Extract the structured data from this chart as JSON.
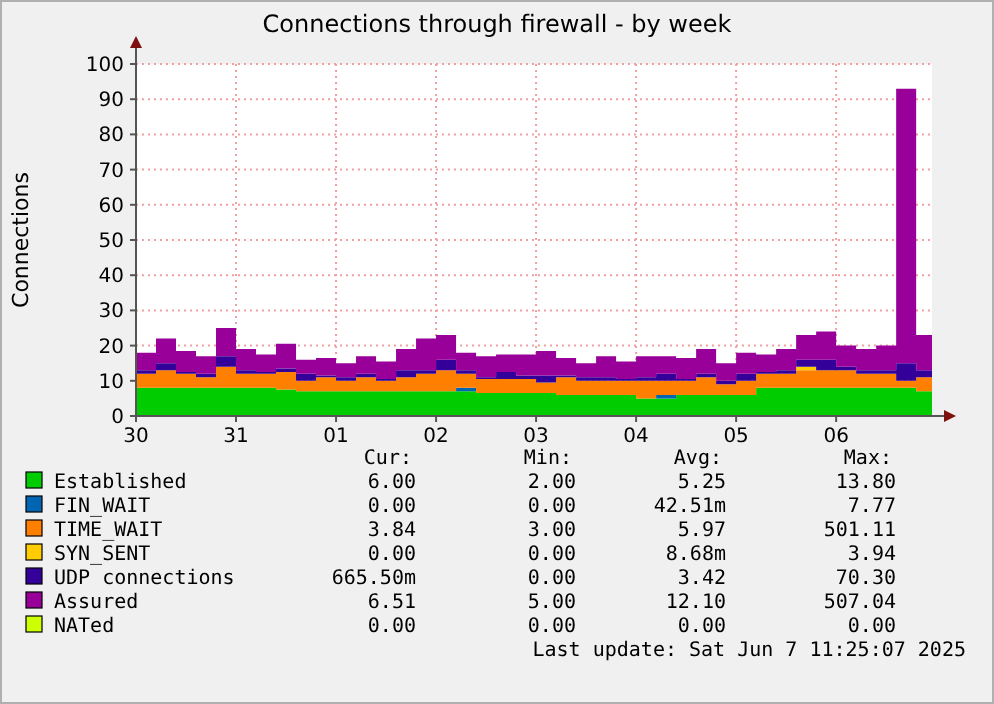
{
  "chart_data": {
    "type": "area",
    "stacked": true,
    "title": "Connections through firewall - by week",
    "ylabel": "Connections",
    "x": [
      "2025-05-30T00:00",
      "2025-05-30T04:48",
      "2025-05-30T09:36",
      "2025-05-30T14:24",
      "2025-05-30T19:12",
      "2025-05-31T00:00",
      "2025-05-31T04:48",
      "2025-05-31T09:36",
      "2025-05-31T14:24",
      "2025-05-31T19:12",
      "2025-06-01T00:00",
      "2025-06-01T04:48",
      "2025-06-01T09:36",
      "2025-06-01T14:24",
      "2025-06-01T19:12",
      "2025-06-02T00:00",
      "2025-06-02T04:48",
      "2025-06-02T09:36",
      "2025-06-02T14:24",
      "2025-06-02T19:12",
      "2025-06-03T00:00",
      "2025-06-03T04:48",
      "2025-06-03T09:36",
      "2025-06-03T14:24",
      "2025-06-03T19:12",
      "2025-06-04T00:00",
      "2025-06-04T04:48",
      "2025-06-04T09:36",
      "2025-06-04T14:24",
      "2025-06-04T19:12",
      "2025-06-05T00:00",
      "2025-06-05T04:48",
      "2025-06-05T09:36",
      "2025-06-05T14:24",
      "2025-06-05T19:12",
      "2025-06-06T00:00",
      "2025-06-06T04:48",
      "2025-06-06T09:36",
      "2025-06-06T14:24",
      "2025-06-06T19:12",
      "2025-06-06T23:00"
    ],
    "xlim": [
      "2025-05-30T00:00",
      "2025-06-06T23:00"
    ],
    "xticks": [
      {
        "value": "2025-05-30",
        "label": "30"
      },
      {
        "value": "2025-05-31",
        "label": "31"
      },
      {
        "value": "2025-06-01",
        "label": "01"
      },
      {
        "value": "2025-06-02",
        "label": "02"
      },
      {
        "value": "2025-06-03",
        "label": "03"
      },
      {
        "value": "2025-06-04",
        "label": "04"
      },
      {
        "value": "2025-06-05",
        "label": "05"
      },
      {
        "value": "2025-06-06",
        "label": "06"
      }
    ],
    "ylim": [
      0,
      100
    ],
    "yticks": [
      0,
      10,
      20,
      30,
      40,
      50,
      60,
      70,
      80,
      90,
      100
    ],
    "grid": true,
    "legend": "bottom",
    "series": [
      {
        "name": "Established",
        "color": "#00cc00",
        "values": [
          8,
          8,
          8,
          8,
          8,
          8,
          8,
          7.5,
          7,
          7,
          7,
          7,
          7,
          7,
          7,
          7,
          7,
          6.5,
          6.5,
          6.5,
          6.5,
          6,
          6,
          6,
          6,
          5,
          5,
          6,
          6,
          6,
          6,
          8,
          8,
          8,
          8,
          8,
          8,
          8,
          8,
          7,
          6
        ]
      },
      {
        "name": "FIN_WAIT",
        "color": "#0066b3",
        "values": [
          0,
          0,
          0,
          0,
          0,
          0,
          0,
          0,
          0,
          0,
          0,
          0,
          0,
          0,
          0,
          0,
          1,
          0,
          0,
          0,
          0,
          0,
          0,
          0,
          0,
          0,
          1,
          0,
          0,
          0,
          0,
          0,
          0,
          0,
          0,
          0,
          0,
          0,
          0,
          0,
          0
        ]
      },
      {
        "name": "TIME_WAIT",
        "color": "#ff8000",
        "values": [
          4,
          5,
          4,
          3,
          6,
          4,
          4,
          5,
          3,
          4,
          3,
          4,
          3,
          4,
          5,
          6,
          4,
          4,
          4,
          4,
          3,
          5,
          4,
          4,
          4,
          5,
          4,
          4,
          5,
          3,
          4,
          4,
          4,
          5,
          5,
          5,
          4,
          4,
          2,
          4,
          4
        ]
      },
      {
        "name": "SYN_SENT",
        "color": "#ffcc00",
        "values": [
          0,
          0,
          0,
          0,
          0,
          0,
          0,
          0,
          0,
          0,
          0,
          0,
          0,
          0,
          0,
          0,
          0,
          0,
          0,
          0,
          0,
          0,
          0,
          0,
          0,
          0,
          0,
          0,
          0,
          0,
          0,
          0,
          0,
          1,
          0,
          0,
          0,
          0,
          0,
          0,
          0
        ]
      },
      {
        "name": "UDP connections",
        "color": "#330099",
        "values": [
          1,
          2,
          0.5,
          1,
          3,
          1,
          0.5,
          1,
          2,
          0.5,
          1,
          1,
          0.5,
          2,
          1,
          3,
          1,
          0.5,
          2,
          1,
          2,
          0.5,
          1,
          1,
          0.5,
          1,
          2,
          0.5,
          1,
          1,
          2,
          0.5,
          1,
          2,
          3,
          1,
          1,
          1,
          5,
          2,
          0.5
        ]
      },
      {
        "name": "Assured",
        "color": "#990099",
        "values": [
          5,
          7,
          6,
          5,
          8,
          6,
          5,
          7,
          4,
          5,
          4,
          5,
          5,
          6,
          9,
          7,
          5,
          6,
          5,
          6,
          7,
          5,
          4,
          6,
          5,
          6,
          5,
          6,
          7,
          5,
          6,
          5,
          6,
          7,
          8,
          6,
          6,
          7,
          78,
          10,
          4
        ]
      },
      {
        "name": "NATed",
        "color": "#ccff00",
        "values": [
          null,
          null,
          null,
          null,
          null,
          null,
          null,
          null,
          null,
          null,
          null,
          null,
          null,
          null,
          null,
          null,
          null,
          null,
          null,
          null,
          null,
          null,
          null,
          null,
          null,
          null,
          null,
          null,
          null,
          null,
          null,
          null,
          null,
          null,
          null,
          null,
          null,
          null,
          null,
          null,
          null
        ]
      }
    ],
    "annotations": [
      "Cur:",
      "Min:",
      "Avg:",
      "Max:",
      "6.00",
      "2.00",
      "5.25",
      "13.80",
      "0.00",
      "0.00",
      "42.51m",
      "7.77",
      "3.84",
      "3.00",
      "5.97",
      "501.11",
      "0.00",
      "0.00",
      "8.68m",
      "3.94",
      "665.50m",
      "0.00",
      "3.42",
      "70.30",
      "6.51",
      "5.00",
      "12.10",
      "507.04",
      "0.00",
      "0.00",
      "0.00",
      "0.00",
      "Last update:  Sat Jun  7 11:25:07 2025"
    ]
  }
}
